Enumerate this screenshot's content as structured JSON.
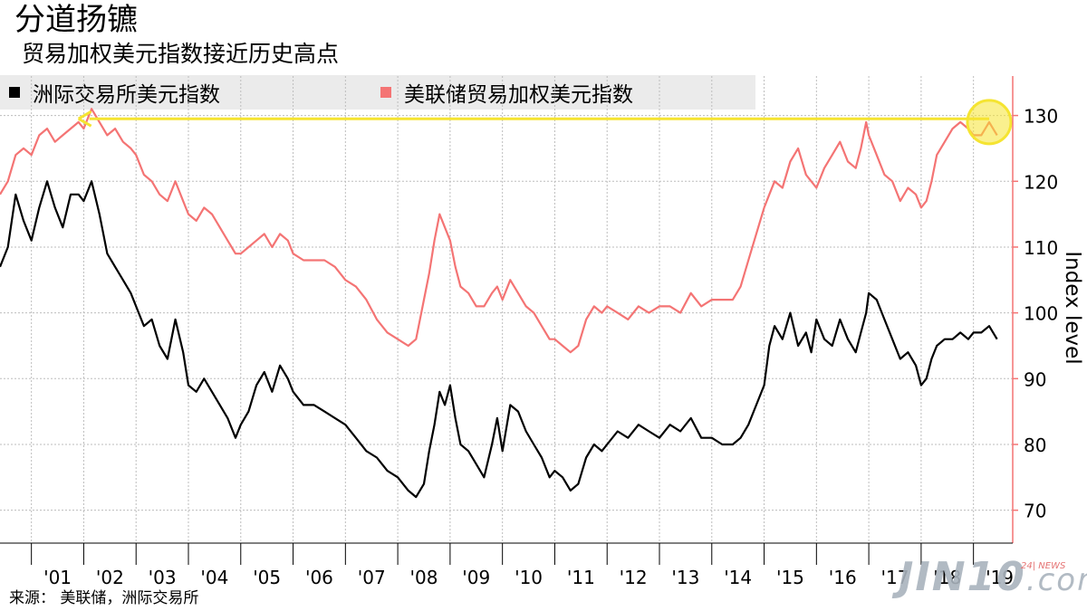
{
  "title": "分道扬镳",
  "subtitle": "贸易加权美元指数接近历史高点",
  "legend": [
    {
      "label": "洲际交易所美元指数",
      "color": "#000000"
    },
    {
      "label": "美联储贸易加权美元指数",
      "color": "#f47474"
    }
  ],
  "source": "来源：  美联储，洲际交易所",
  "watermark": {
    "brand": "JIN10",
    "suffix": ".com",
    "badge": "24| NEWS"
  },
  "chart_data": {
    "type": "line",
    "ylabel": "Index level",
    "ylim": [
      65,
      136
    ],
    "yticks": [
      70,
      80,
      90,
      100,
      110,
      120,
      130
    ],
    "x_tick_labels": [
      "'01",
      "'02",
      "'03",
      "'04",
      "'05",
      "'06",
      "'07",
      "'08",
      "'09",
      "'10",
      "'11",
      "'12",
      "'13",
      "'14",
      "'15",
      "'16",
      "'17",
      "'18",
      "'19"
    ],
    "xlim": [
      2000.4,
      2019.75
    ],
    "grid": true,
    "legend_position": "top-left",
    "axis_color": "#f47474",
    "series": [
      {
        "name": "洲际交易所美元指数",
        "color": "#000000",
        "x": [
          2000.4,
          2000.55,
          2000.7,
          2000.85,
          2001.0,
          2001.15,
          2001.3,
          2001.45,
          2001.6,
          2001.75,
          2001.9,
          2002.0,
          2002.15,
          2002.3,
          2002.45,
          2002.6,
          2002.75,
          2002.9,
          2003.0,
          2003.15,
          2003.3,
          2003.45,
          2003.6,
          2003.75,
          2003.9,
          2004.0,
          2004.15,
          2004.3,
          2004.45,
          2004.6,
          2004.75,
          2004.9,
          2005.0,
          2005.15,
          2005.3,
          2005.45,
          2005.6,
          2005.75,
          2005.9,
          2006.0,
          2006.2,
          2006.4,
          2006.6,
          2006.8,
          2007.0,
          2007.2,
          2007.4,
          2007.6,
          2007.8,
          2008.0,
          2008.2,
          2008.35,
          2008.5,
          2008.6,
          2008.7,
          2008.8,
          2008.9,
          2009.0,
          2009.1,
          2009.2,
          2009.35,
          2009.5,
          2009.65,
          2009.8,
          2009.9,
          2010.0,
          2010.15,
          2010.3,
          2010.45,
          2010.6,
          2010.75,
          2010.9,
          2011.0,
          2011.15,
          2011.3,
          2011.45,
          2011.6,
          2011.75,
          2011.9,
          2012.0,
          2012.2,
          2012.4,
          2012.6,
          2012.8,
          2013.0,
          2013.2,
          2013.4,
          2013.6,
          2013.8,
          2014.0,
          2014.2,
          2014.4,
          2014.55,
          2014.7,
          2014.85,
          2015.0,
          2015.1,
          2015.2,
          2015.35,
          2015.5,
          2015.65,
          2015.8,
          2015.9,
          2016.0,
          2016.15,
          2016.3,
          2016.45,
          2016.6,
          2016.75,
          2016.85,
          2016.95,
          2017.0,
          2017.15,
          2017.3,
          2017.45,
          2017.6,
          2017.75,
          2017.9,
          2018.0,
          2018.1,
          2018.2,
          2018.3,
          2018.45,
          2018.6,
          2018.75,
          2018.9,
          2019.0,
          2019.15,
          2019.3,
          2019.45
        ],
        "y": [
          107,
          110,
          118,
          114,
          111,
          116,
          120,
          116,
          113,
          118,
          118,
          117,
          120,
          115,
          109,
          107,
          105,
          103,
          101,
          98,
          99,
          95,
          93,
          99,
          94,
          89,
          88,
          90,
          88,
          86,
          84,
          81,
          83,
          85,
          89,
          91,
          88,
          92,
          90,
          88,
          86,
          86,
          85,
          84,
          83,
          81,
          79,
          78,
          76,
          75,
          73,
          72,
          74,
          79,
          83,
          88,
          86,
          89,
          84,
          80,
          79,
          77,
          75,
          80,
          84,
          79,
          86,
          85,
          82,
          80,
          78,
          75,
          76,
          75,
          73,
          74,
          78,
          80,
          79,
          80,
          82,
          81,
          83,
          82,
          81,
          83,
          82,
          84,
          81,
          81,
          80,
          80,
          81,
          83,
          86,
          89,
          95,
          98,
          96,
          100,
          95,
          97,
          94,
          99,
          96,
          95,
          99,
          96,
          94,
          97,
          100,
          103,
          102,
          99,
          96,
          93,
          94,
          92,
          89,
          90,
          93,
          95,
          96,
          96,
          97,
          96,
          97,
          97,
          98,
          96
        ]
      },
      {
        "name": "美联储贸易加权美元指数",
        "color": "#f47474",
        "x": [
          2000.4,
          2000.55,
          2000.7,
          2000.85,
          2001.0,
          2001.15,
          2001.3,
          2001.45,
          2001.6,
          2001.75,
          2001.9,
          2002.0,
          2002.15,
          2002.3,
          2002.45,
          2002.6,
          2002.75,
          2002.9,
          2003.0,
          2003.15,
          2003.3,
          2003.45,
          2003.6,
          2003.75,
          2003.9,
          2004.0,
          2004.15,
          2004.3,
          2004.45,
          2004.6,
          2004.75,
          2004.9,
          2005.0,
          2005.15,
          2005.3,
          2005.45,
          2005.6,
          2005.75,
          2005.9,
          2006.0,
          2006.2,
          2006.4,
          2006.6,
          2006.8,
          2007.0,
          2007.2,
          2007.4,
          2007.6,
          2007.8,
          2008.0,
          2008.2,
          2008.35,
          2008.5,
          2008.6,
          2008.7,
          2008.8,
          2008.9,
          2009.0,
          2009.1,
          2009.2,
          2009.35,
          2009.5,
          2009.65,
          2009.8,
          2009.9,
          2010.0,
          2010.15,
          2010.3,
          2010.45,
          2010.6,
          2010.75,
          2010.9,
          2011.0,
          2011.15,
          2011.3,
          2011.45,
          2011.6,
          2011.75,
          2011.9,
          2012.0,
          2012.2,
          2012.4,
          2012.6,
          2012.8,
          2013.0,
          2013.2,
          2013.4,
          2013.6,
          2013.8,
          2014.0,
          2014.2,
          2014.4,
          2014.55,
          2014.7,
          2014.85,
          2015.0,
          2015.1,
          2015.2,
          2015.35,
          2015.5,
          2015.65,
          2015.8,
          2015.9,
          2016.0,
          2016.15,
          2016.3,
          2016.45,
          2016.6,
          2016.75,
          2016.85,
          2016.95,
          2017.0,
          2017.15,
          2017.3,
          2017.45,
          2017.6,
          2017.75,
          2017.9,
          2018.0,
          2018.1,
          2018.2,
          2018.3,
          2018.45,
          2018.6,
          2018.75,
          2018.9,
          2019.0,
          2019.15,
          2019.3,
          2019.45
        ],
        "y": [
          118,
          120,
          124,
          125,
          124,
          127,
          128,
          126,
          127,
          128,
          129,
          128,
          131,
          129,
          127,
          128,
          126,
          125,
          124,
          121,
          120,
          118,
          117,
          120,
          117,
          115,
          114,
          116,
          115,
          113,
          111,
          109,
          109,
          110,
          111,
          112,
          110,
          112,
          111,
          109,
          108,
          108,
          108,
          107,
          105,
          104,
          102,
          99,
          97,
          96,
          95,
          96,
          102,
          106,
          111,
          115,
          113,
          111,
          107,
          104,
          103,
          101,
          101,
          103,
          104,
          102,
          105,
          103,
          101,
          100,
          98,
          96,
          96,
          95,
          94,
          95,
          99,
          101,
          100,
          101,
          100,
          99,
          101,
          100,
          101,
          101,
          100,
          103,
          101,
          102,
          102,
          102,
          104,
          108,
          112,
          116,
          118,
          120,
          119,
          123,
          125,
          121,
          120,
          119,
          122,
          124,
          126,
          123,
          122,
          125,
          129,
          127,
          124,
          121,
          120,
          117,
          119,
          118,
          116,
          117,
          120,
          124,
          126,
          128,
          129,
          128,
          127,
          127,
          129,
          127
        ]
      }
    ],
    "annotation": {
      "type": "arrow",
      "from_x": 2019.3,
      "to_x": 2001.9,
      "at_y": 129.5,
      "color": "#f5e431"
    },
    "highlight_circle": {
      "x": 2019.3,
      "y": 129,
      "color": "#f5e431"
    }
  }
}
